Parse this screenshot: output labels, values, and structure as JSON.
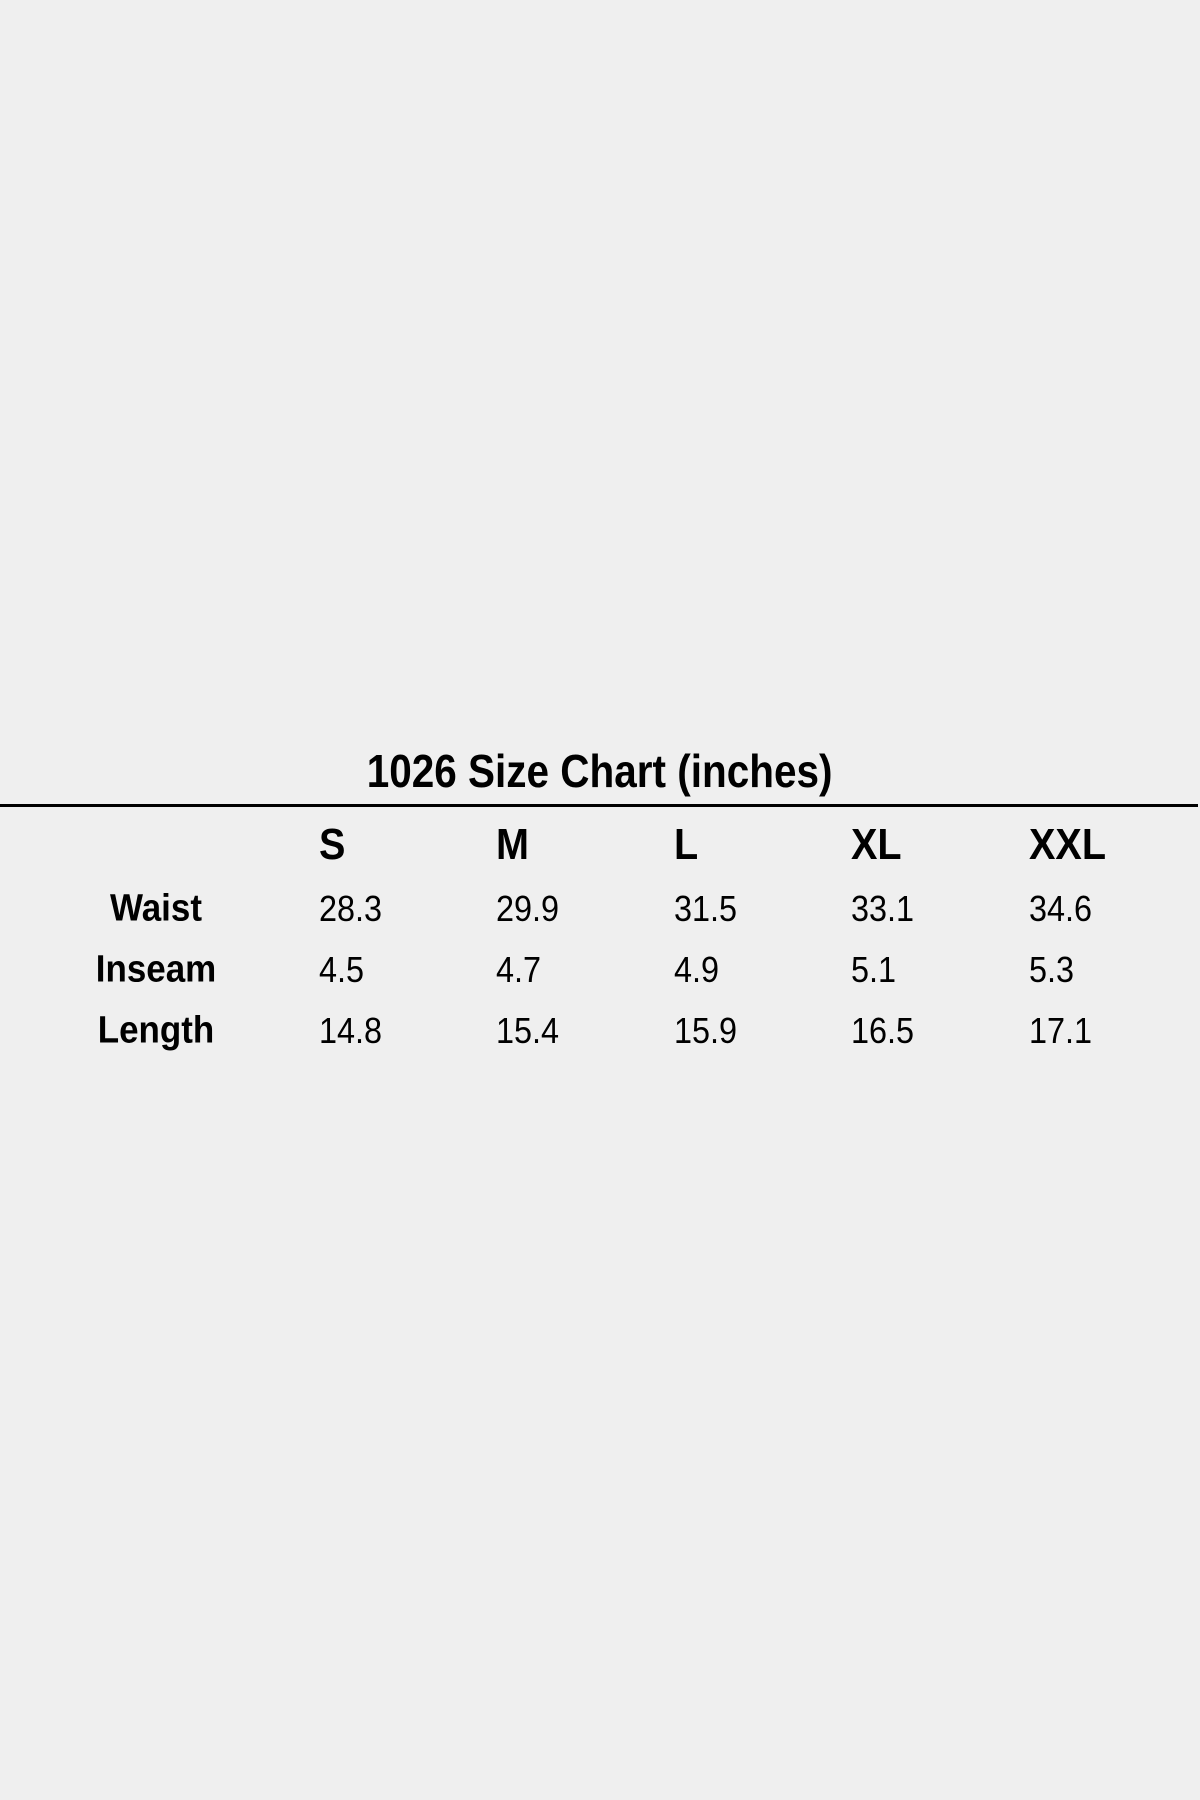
{
  "title": "1026 Size Chart (inches)",
  "sizes": [
    "S",
    "M",
    "L",
    "XL",
    "XXL"
  ],
  "rows": [
    {
      "label": "Waist",
      "values": [
        "28.3",
        "29.9",
        "31.5",
        "33.1",
        "34.6"
      ]
    },
    {
      "label": "Inseam",
      "values": [
        "4.5",
        "4.7",
        "4.9",
        "5.1",
        "5.3"
      ]
    },
    {
      "label": "Length",
      "values": [
        "14.8",
        "15.4",
        "15.9",
        "16.5",
        "17.1"
      ]
    }
  ]
}
